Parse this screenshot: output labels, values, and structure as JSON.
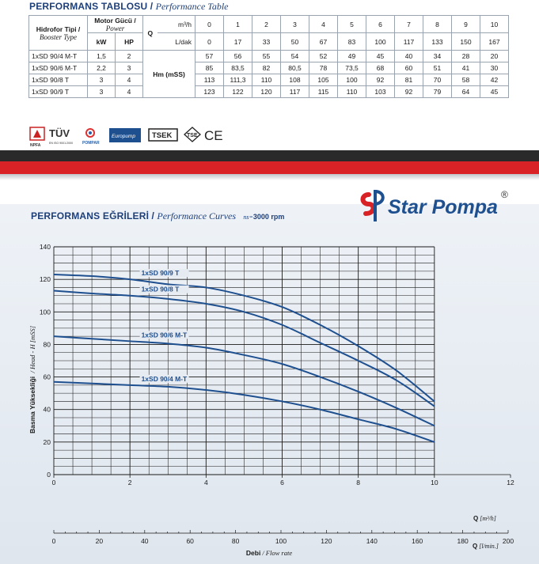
{
  "table_section": {
    "title_bold": "PERFORMANS TABLOSU",
    "separator": "/",
    "title_italic": "Performance Table"
  },
  "table": {
    "type_header": "Hidrofor Tipi /",
    "type_header_en": "Booster Type",
    "motor_header": "Motor Gücü /",
    "motor_header_en": "Power",
    "kw": "kW",
    "hp": "HP",
    "q_label": "Q",
    "unit_m3h": "m³/h",
    "unit_ldak": "L/dak",
    "hm_label": "Hm (mSS)",
    "q_m3h": [
      "0",
      "1",
      "2",
      "3",
      "4",
      "5",
      "6",
      "7",
      "8",
      "9",
      "10"
    ],
    "q_ldak": [
      "0",
      "17",
      "33",
      "50",
      "67",
      "83",
      "100",
      "117",
      "133",
      "150",
      "167"
    ],
    "rows": [
      {
        "model": "1xSD 90/4 M-T",
        "kw": "1,5",
        "hp": "2",
        "values": [
          "57",
          "56",
          "55",
          "54",
          "52",
          "49",
          "45",
          "40",
          "34",
          "28",
          "20"
        ]
      },
      {
        "model": "1xSD 90/6 M-T",
        "kw": "2,2",
        "hp": "3",
        "values": [
          "85",
          "83,5",
          "82",
          "80,5",
          "78",
          "73,5",
          "68",
          "60",
          "51",
          "41",
          "30"
        ]
      },
      {
        "model": "1xSD 90/8 T",
        "kw": "3",
        "hp": "4",
        "values": [
          "113",
          "111,3",
          "110",
          "108",
          "105",
          "100",
          "92",
          "81",
          "70",
          "58",
          "42"
        ]
      },
      {
        "model": "1xSD 90/9 T",
        "kw": "3",
        "hp": "4",
        "values": [
          "123",
          "122",
          "120",
          "117",
          "115",
          "110",
          "103",
          "92",
          "79",
          "64",
          "45"
        ]
      }
    ]
  },
  "certifications": {
    "tuv": "TÜV",
    "tuv_sub": "EN ISO 9001:2000",
    "npfa": "NPFA",
    "pompar": "POMPAR",
    "europump": "Europump",
    "tsek": "TSEK",
    "tse": "TSE",
    "ce": "CE"
  },
  "brand": {
    "name": "Star Pompa",
    "registered": "®"
  },
  "curves_section": {
    "title_bold": "PERFORMANS EĞRİLERİ",
    "separator": "/",
    "title_italic": "Performance Curves",
    "rpm_prefix": "ns=",
    "rpm_value": "3000 rpm"
  },
  "chart_data": {
    "type": "line",
    "x_unit_label": "Q",
    "x_unit": "[m³/h]",
    "x2_unit_label": "Q",
    "x2_unit": "[l/min.]",
    "xlabel_bold": "Debi",
    "xlabel_italic": "/ Flow rate",
    "ylabel_bold": "Basma Yüksekliği",
    "ylabel_italic": "/ Head - H [mSS]",
    "xlim": [
      0,
      12
    ],
    "ylim": [
      0,
      140
    ],
    "x_ticks": [
      "0",
      "2",
      "4",
      "6",
      "8",
      "10",
      "12"
    ],
    "x_tick_values": [
      0,
      2,
      4,
      6,
      8,
      10,
      12
    ],
    "x2_ticks": [
      "0",
      "20",
      "40",
      "60",
      "80",
      "100",
      "120",
      "140",
      "160",
      "180",
      "200"
    ],
    "x2_tick_values": [
      0,
      20,
      40,
      60,
      80,
      100,
      120,
      140,
      160,
      180,
      200
    ],
    "y_ticks": [
      "0",
      "20",
      "40",
      "60",
      "80",
      "100",
      "120",
      "140"
    ],
    "y_tick_values": [
      0,
      20,
      40,
      60,
      80,
      100,
      120,
      140
    ],
    "grid": true,
    "series": [
      {
        "name": "1xSD 90/9 T",
        "x": [
          0,
          1,
          2,
          3,
          4,
          5,
          6,
          7,
          8,
          9,
          10
        ],
        "y": [
          123,
          122,
          120,
          117,
          115,
          110,
          103,
          92,
          79,
          64,
          45
        ]
      },
      {
        "name": "1xSD 90/8 T",
        "x": [
          0,
          1,
          2,
          3,
          4,
          5,
          6,
          7,
          8,
          9,
          10
        ],
        "y": [
          113,
          111.3,
          110,
          108,
          105,
          100,
          92,
          81,
          70,
          58,
          42
        ]
      },
      {
        "name": "1xSD 90/6 M-T",
        "x": [
          0,
          1,
          2,
          3,
          4,
          5,
          6,
          7,
          8,
          9,
          10
        ],
        "y": [
          85,
          83.5,
          82,
          80.5,
          78,
          73.5,
          68,
          60,
          51,
          41,
          30
        ]
      },
      {
        "name": "1xSD 90/4 M-T",
        "x": [
          0,
          1,
          2,
          3,
          4,
          5,
          6,
          7,
          8,
          9,
          10
        ],
        "y": [
          57,
          56,
          55,
          54,
          52,
          49,
          45,
          40,
          34,
          28,
          20
        ]
      }
    ],
    "colors": {
      "curve": "#1e4f8f",
      "grid": "#1a1a1a",
      "label": "#1e4f8f"
    }
  }
}
